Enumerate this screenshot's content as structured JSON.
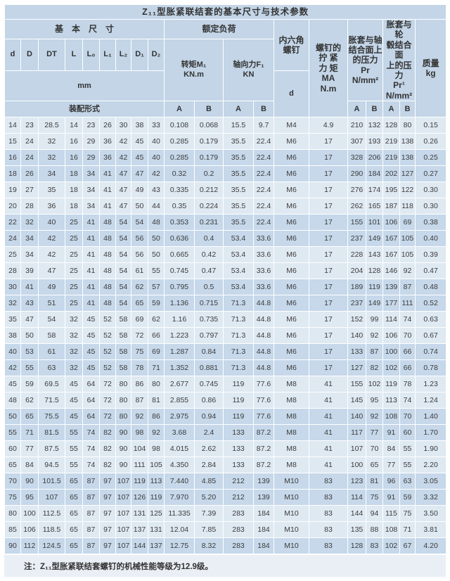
{
  "title": "Z₁₁型胀紧联结套的基本尺寸与技术参数",
  "header": {
    "basic_dims": "基　本　尺　寸",
    "rated_load": "额定负荷",
    "hex_screw": "内六角\n螺钉",
    "screw_d": "d",
    "tightening_torque": "螺钉的\n拧 紧\n力 矩\nMA\nN.m",
    "shaft_pressure": "胀套与轴\n结合面上\n的压力\nPr\nN/mm²",
    "hub_pressure": "胀套与轮\n毂结合面\n上的压力\nPr¹\nN/mm²",
    "mass": "质量\nkg",
    "dim_cols": [
      "d",
      "D",
      "DT",
      "L",
      "L₀",
      "L₁",
      "L₂",
      "D₁",
      "D₂"
    ],
    "mm": "mm",
    "assembly": "装配形式",
    "torque": "转矩M₁\nKN.m",
    "axial": "轴向力F₁\nKN",
    "ab_load": [
      "A",
      "B",
      "A",
      "B"
    ],
    "ab_pressure": [
      "A",
      "B",
      "A",
      "B"
    ]
  },
  "rows": [
    [
      "14",
      "23",
      "28.5",
      "14",
      "23",
      "26",
      "30",
      "38",
      "33",
      "0.108",
      "0.068",
      "15.5",
      "9.7",
      "M4",
      "4.9",
      "210",
      "132",
      "128",
      "80",
      "0.15"
    ],
    [
      "15",
      "24",
      "32",
      "16",
      "29",
      "36",
      "42",
      "45",
      "40",
      "0.285",
      "0.179",
      "35.5",
      "22.4",
      "M6",
      "17",
      "307",
      "193",
      "219",
      "138",
      "0.26"
    ],
    [
      "16",
      "24",
      "32",
      "16",
      "29",
      "36",
      "42",
      "45",
      "40",
      "0.285",
      "0.179",
      "35.5",
      "22.4",
      "M6",
      "17",
      "328",
      "206",
      "219",
      "138",
      "0.25"
    ],
    [
      "18",
      "26",
      "34",
      "18",
      "34",
      "41",
      "47",
      "47",
      "42",
      "0.32",
      "0.2",
      "35.5",
      "22.4",
      "M6",
      "17",
      "290",
      "184",
      "202",
      "127",
      "0.27"
    ],
    [
      "19",
      "27",
      "35",
      "18",
      "34",
      "41",
      "47",
      "49",
      "43",
      "0.335",
      "0.212",
      "35.5",
      "22.4",
      "M6",
      "17",
      "276",
      "174",
      "195",
      "122",
      "0.30"
    ],
    [
      "20",
      "28",
      "36",
      "18",
      "34",
      "41",
      "47",
      "50",
      "44",
      "0.35",
      "0.224",
      "35.5",
      "22.4",
      "M6",
      "17",
      "262",
      "165",
      "187",
      "118",
      "0.30"
    ],
    [
      "22",
      "32",
      "40",
      "25",
      "41",
      "48",
      "54",
      "54",
      "48",
      "0.353",
      "0.231",
      "35.5",
      "22.4",
      "M6",
      "17",
      "155",
      "101",
      "106",
      "69",
      "0.38"
    ],
    [
      "24",
      "34",
      "42",
      "25",
      "41",
      "48",
      "54",
      "56",
      "50",
      "0.636",
      "0.4",
      "53.4",
      "33.6",
      "M6",
      "17",
      "237",
      "149",
      "167",
      "105",
      "0.40"
    ],
    [
      "25",
      "34",
      "42",
      "25",
      "41",
      "48",
      "54",
      "56",
      "50",
      "0.665",
      "0.42",
      "53.4",
      "33.6",
      "M6",
      "17",
      "228",
      "143",
      "167",
      "105",
      "0.39"
    ],
    [
      "28",
      "39",
      "47",
      "25",
      "41",
      "48",
      "54",
      "61",
      "55",
      "0.745",
      "0.47",
      "53.4",
      "33.6",
      "M6",
      "17",
      "204",
      "128",
      "146",
      "92",
      "0.47"
    ],
    [
      "30",
      "41",
      "49",
      "25",
      "41",
      "48",
      "54",
      "62",
      "57",
      "0.795",
      "0.5",
      "53.4",
      "33.6",
      "M6",
      "17",
      "189",
      "119",
      "139",
      "87",
      "0.48"
    ],
    [
      "32",
      "43",
      "51",
      "25",
      "41",
      "48",
      "54",
      "65",
      "59",
      "1.136",
      "0.715",
      "71.3",
      "44.8",
      "M6",
      "17",
      "237",
      "149",
      "177",
      "111",
      "0.52"
    ],
    [
      "35",
      "47",
      "54",
      "32",
      "45",
      "52",
      "58",
      "69",
      "62",
      "1.16",
      "0.735",
      "71.3",
      "44.8",
      "M6",
      "17",
      "152",
      "99",
      "114",
      "74",
      "0.63"
    ],
    [
      "38",
      "50",
      "58",
      "32",
      "45",
      "52",
      "58",
      "72",
      "66",
      "1.223",
      "0.797",
      "71.3",
      "44.8",
      "M6",
      "17",
      "140",
      "92",
      "106",
      "70",
      "0.67"
    ],
    [
      "40",
      "53",
      "61",
      "32",
      "45",
      "52",
      "58",
      "75",
      "69",
      "1.287",
      "0.84",
      "71.3",
      "44.8",
      "M6",
      "17",
      "133",
      "87",
      "100",
      "66",
      "0.74"
    ],
    [
      "42",
      "55",
      "63",
      "32",
      "45",
      "52",
      "58",
      "78",
      "71",
      "1.352",
      "0.881",
      "71.3",
      "44.8",
      "M6",
      "17",
      "127",
      "82",
      "102",
      "66",
      "0.78"
    ],
    [
      "45",
      "59",
      "69.5",
      "45",
      "64",
      "72",
      "80",
      "86",
      "80",
      "2.677",
      "0.745",
      "119",
      "77.6",
      "M8",
      "41",
      "155",
      "102",
      "119",
      "78",
      "1.23"
    ],
    [
      "48",
      "62",
      "71.5",
      "45",
      "64",
      "72",
      "80",
      "87",
      "81",
      "2.855",
      "0.86",
      "119",
      "77.6",
      "M8",
      "41",
      "145",
      "95",
      "113",
      "74",
      "1.24"
    ],
    [
      "50",
      "65",
      "75.5",
      "45",
      "64",
      "72",
      "80",
      "92",
      "86",
      "2.975",
      "0.94",
      "119",
      "77.6",
      "M8",
      "41",
      "140",
      "92",
      "108",
      "70",
      "1.40"
    ],
    [
      "55",
      "71",
      "81.5",
      "55",
      "74",
      "82",
      "90",
      "98",
      "92",
      "3.68",
      "2.4",
      "133",
      "87.2",
      "M8",
      "41",
      "117",
      "77",
      "91",
      "60",
      "1.70"
    ],
    [
      "60",
      "77",
      "87.5",
      "55",
      "74",
      "82",
      "90",
      "104",
      "98",
      "4.015",
      "2.62",
      "133",
      "87.2",
      "M8",
      "41",
      "107",
      "70",
      "84",
      "55",
      "1.90"
    ],
    [
      "65",
      "84",
      "94.5",
      "55",
      "74",
      "82",
      "90",
      "111",
      "105",
      "4.350",
      "2.84",
      "133",
      "87.2",
      "M8",
      "41",
      "100",
      "65",
      "77",
      "55",
      "2.20"
    ],
    [
      "70",
      "90",
      "101.5",
      "65",
      "87",
      "97",
      "107",
      "119",
      "113",
      "7.440",
      "4.85",
      "212",
      "139",
      "M10",
      "83",
      "123",
      "81",
      "96",
      "63",
      "3.05"
    ],
    [
      "75",
      "95",
      "107",
      "65",
      "87",
      "97",
      "107",
      "126",
      "119",
      "7.970",
      "5.20",
      "212",
      "139",
      "M10",
      "83",
      "114",
      "75",
      "91",
      "59",
      "3.32"
    ],
    [
      "80",
      "100",
      "112.5",
      "65",
      "87",
      "97",
      "107",
      "131",
      "125",
      "11.335",
      "7.39",
      "283",
      "184",
      "M10",
      "83",
      "144",
      "94",
      "115",
      "75",
      "3.50"
    ],
    [
      "85",
      "106",
      "118.5",
      "65",
      "87",
      "97",
      "107",
      "137",
      "131",
      "12.04",
      "7.85",
      "283",
      "184",
      "M10",
      "83",
      "135",
      "88",
      "108",
      "71",
      "3.81"
    ],
    [
      "90",
      "112",
      "124.5",
      "65",
      "87",
      "97",
      "107",
      "144",
      "137",
      "12.75",
      "8.32",
      "283",
      "184",
      "M10",
      "83",
      "128",
      "83",
      "102",
      "67",
      "4.20"
    ]
  ],
  "note": "注：Z₁₁型胀紧联结套螺钉的机械性能等级为12.9级。",
  "colors": {
    "header_bg": "#c3d5e7",
    "row_light": "#dfe9f2",
    "row_dark": "#c6d8ea",
    "note_bg": "#eaeff5",
    "grid": "#ffffff",
    "text_dark": "#333333",
    "text_data": "#3c3c3c"
  }
}
